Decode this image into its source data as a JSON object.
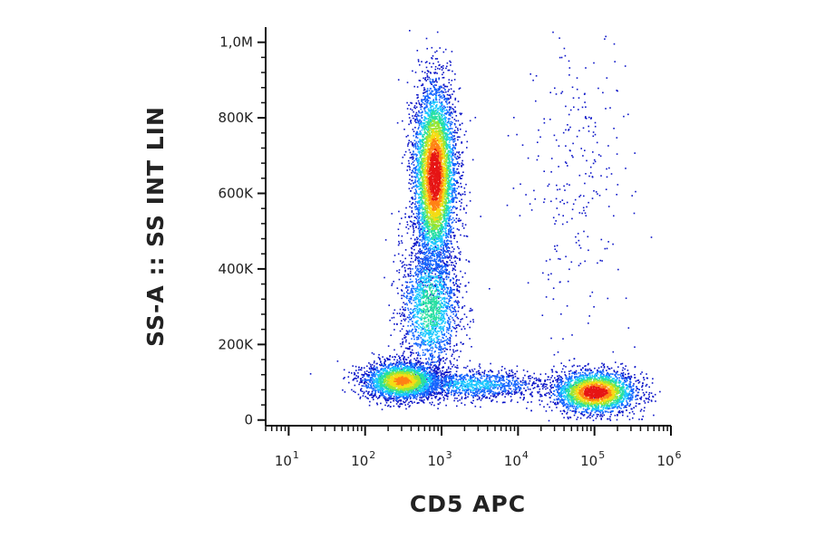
{
  "chart_data": {
    "type": "scatter",
    "title": "",
    "xlabel": "CD5 APC",
    "ylabel": "SS-A :: SS INT LIN",
    "x_scale": "log",
    "y_scale": "linear",
    "xlim": [
      5,
      1000000
    ],
    "ylim": [
      -15000,
      1040000
    ],
    "x_ticks": [
      {
        "base": "10",
        "exp": "1",
        "value": 10
      },
      {
        "base": "10",
        "exp": "2",
        "value": 100
      },
      {
        "base": "10",
        "exp": "3",
        "value": 1000
      },
      {
        "base": "10",
        "exp": "4",
        "value": 10000
      },
      {
        "base": "10",
        "exp": "5",
        "value": 100000
      },
      {
        "base": "10",
        "exp": "6",
        "value": 1000000
      }
    ],
    "y_ticks": [
      {
        "label": "0",
        "value": 0
      },
      {
        "label": "200K",
        "value": 200000
      },
      {
        "label": "400K",
        "value": 400000
      },
      {
        "label": "600K",
        "value": 600000
      },
      {
        "label": "800K",
        "value": 800000
      },
      {
        "label": "1,0M",
        "value": 1000000
      }
    ],
    "grid": false,
    "colormap": [
      "#0b14c8",
      "#1466ff",
      "#19c8ff",
      "#28e0a0",
      "#9be632",
      "#f5dc14",
      "#ff8214",
      "#e61414"
    ],
    "populations": [
      {
        "x_center": 800,
        "y_center": 650000,
        "x_log_sd": 0.14,
        "y_sd": 120000,
        "count": 5200,
        "density": 1.0
      },
      {
        "x_center": 700,
        "y_center": 300000,
        "x_log_sd": 0.2,
        "y_sd": 90000,
        "count": 1800,
        "density": 0.45
      },
      {
        "x_center": 300,
        "y_center": 105000,
        "x_log_sd": 0.25,
        "y_sd": 25000,
        "count": 2600,
        "density": 0.8
      },
      {
        "x_center": 100000,
        "y_center": 75000,
        "x_log_sd": 0.27,
        "y_sd": 28000,
        "count": 3000,
        "density": 1.0
      },
      {
        "x_center": 2500,
        "y_center": 95000,
        "x_log_sd": 0.5,
        "y_sd": 20000,
        "count": 1200,
        "density": 0.3
      },
      {
        "x_center": 60000,
        "y_center": 650000,
        "x_log_sd": 0.35,
        "y_sd": 200000,
        "count": 260,
        "density": 0.05
      }
    ]
  }
}
